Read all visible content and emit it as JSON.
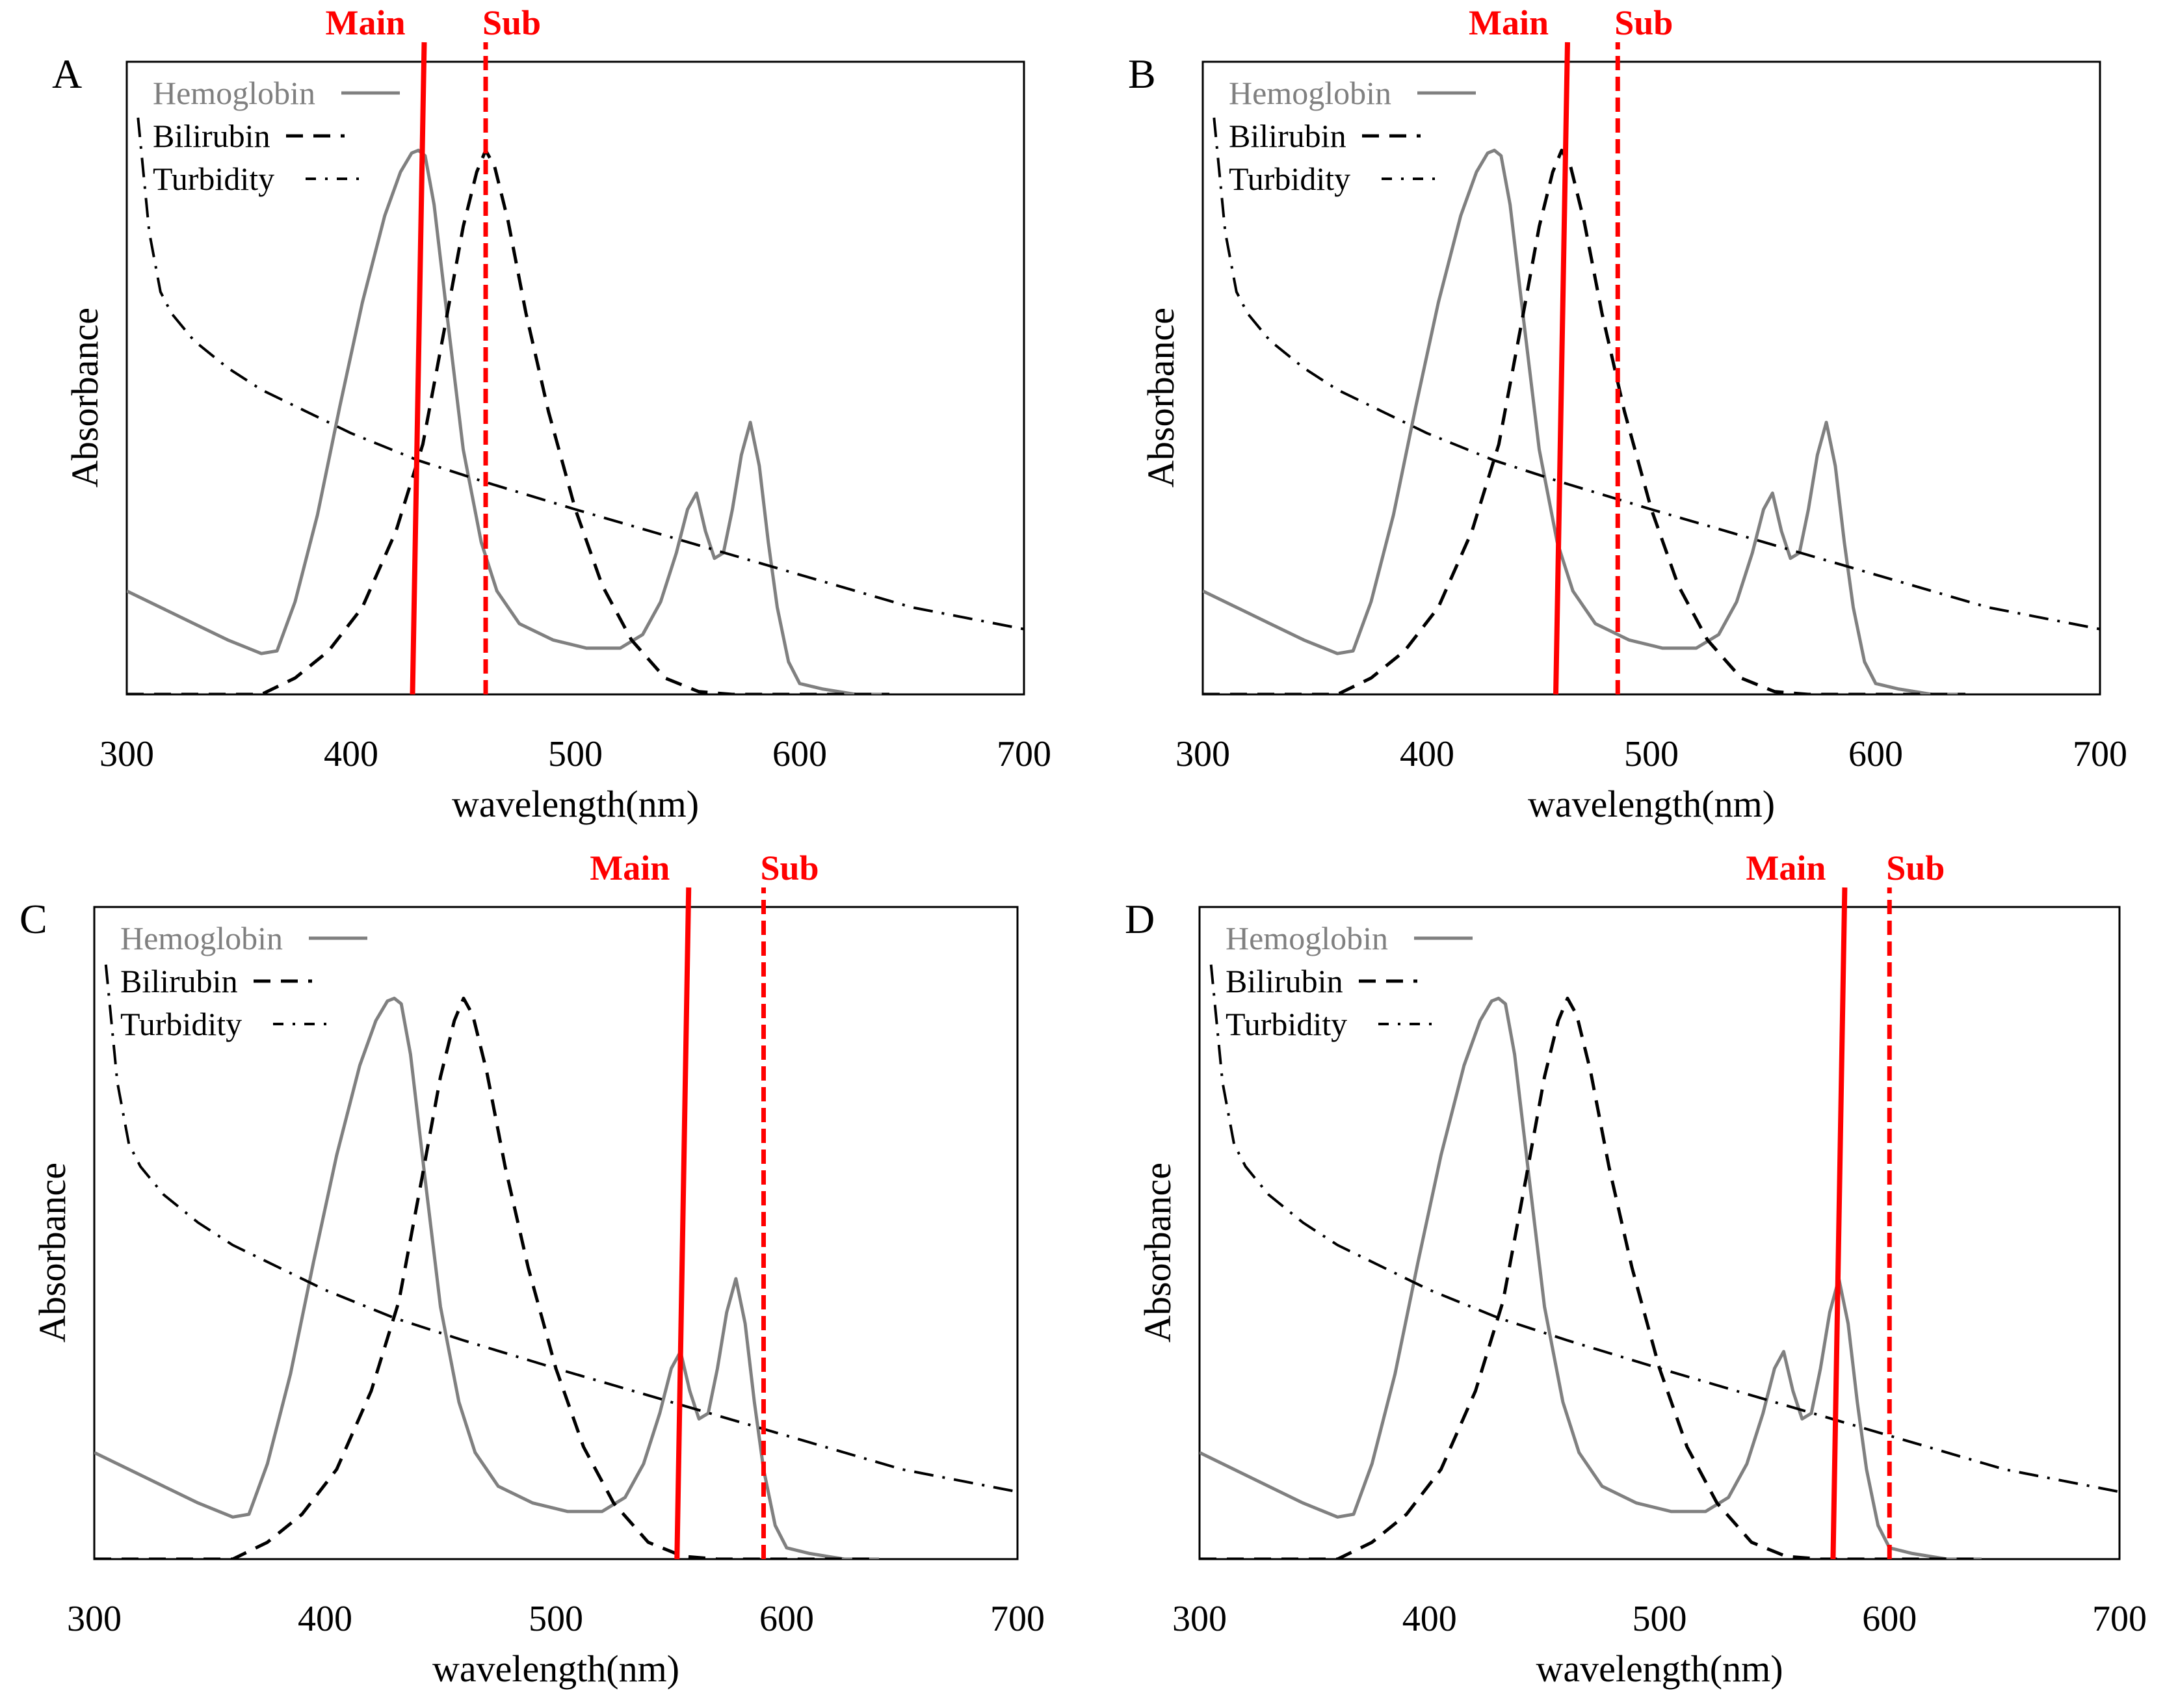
{
  "figure": {
    "colors": {
      "marker": "#ff0000",
      "hemoglobin": "#808080",
      "bilirubin": "#000000",
      "turbidity": "#000000",
      "frame": "#000000"
    }
  },
  "chart_data": [
    {
      "panel": "A",
      "type": "line",
      "xlabel": "wavelength(nm)",
      "ylabel": "Absorbance",
      "xlim": [
        300,
        700
      ],
      "ylim": [
        0,
        1
      ],
      "xticks": [
        "300",
        "400",
        "500",
        "600",
        "700"
      ],
      "legend": {
        "placement": "top-left",
        "entries": [
          "Hemoglobin",
          "Bilirubin",
          "Turbidity"
        ]
      },
      "markers": [
        {
          "label": "Main",
          "x": 430,
          "style": "solid"
        },
        {
          "label": "Sub",
          "x": 460,
          "style": "dashed"
        }
      ],
      "series": [
        {
          "name": "Hemoglobin",
          "style": "solid",
          "x": [
            300,
            315,
            330,
            345,
            360,
            367,
            375,
            385,
            395,
            405,
            415,
            422,
            427,
            430,
            433,
            437,
            443,
            450,
            458,
            465,
            475,
            490,
            505,
            520,
            530,
            538,
            545,
            550,
            554,
            558,
            562,
            566,
            570,
            574,
            578,
            582,
            586,
            590,
            595,
            600,
            610,
            625,
            640
          ],
          "y": [
            0.19,
            0.16,
            0.13,
            0.1,
            0.075,
            0.08,
            0.17,
            0.33,
            0.53,
            0.72,
            0.88,
            0.96,
            0.995,
            1.0,
            0.99,
            0.9,
            0.69,
            0.45,
            0.28,
            0.19,
            0.13,
            0.1,
            0.085,
            0.085,
            0.11,
            0.17,
            0.26,
            0.34,
            0.37,
            0.3,
            0.25,
            0.26,
            0.34,
            0.44,
            0.5,
            0.42,
            0.28,
            0.16,
            0.06,
            0.02,
            0.01,
            0.0,
            0.0
          ]
        },
        {
          "name": "Bilirubin",
          "style": "dashed",
          "x": [
            300,
            340,
            360,
            375,
            390,
            405,
            420,
            432,
            442,
            450,
            456,
            460,
            464,
            470,
            478,
            488,
            500,
            512,
            525,
            540,
            555,
            570,
            600,
            640
          ],
          "y": [
            0.0,
            0.0,
            0.0,
            0.03,
            0.08,
            0.16,
            0.3,
            0.46,
            0.68,
            0.86,
            0.96,
            1.0,
            0.97,
            0.87,
            0.7,
            0.52,
            0.34,
            0.2,
            0.1,
            0.03,
            0.005,
            0.0,
            0.0,
            0.0
          ]
        },
        {
          "name": "Turbidity",
          "style": "dashdot",
          "x": [
            305,
            310,
            315,
            320,
            330,
            345,
            360,
            380,
            400,
            430,
            460,
            500,
            550,
            600,
            650,
            700
          ],
          "y": [
            1.06,
            0.85,
            0.74,
            0.7,
            0.65,
            0.6,
            0.56,
            0.52,
            0.48,
            0.43,
            0.39,
            0.34,
            0.28,
            0.22,
            0.16,
            0.12
          ]
        }
      ]
    },
    {
      "panel": "B",
      "type": "line",
      "xlabel": "wavelength(nm)",
      "ylabel": "Absorbance",
      "xlim": [
        300,
        700
      ],
      "ylim": [
        0,
        1
      ],
      "xticks": [
        "300",
        "400",
        "500",
        "600",
        "700"
      ],
      "legend": {
        "placement": "top-left",
        "entries": [
          "Hemoglobin",
          "Bilirubin",
          "Turbidity"
        ]
      },
      "markers": [
        {
          "label": "Main",
          "x": 460,
          "style": "solid"
        },
        {
          "label": "Sub",
          "x": 485,
          "style": "dashed"
        }
      ],
      "series": [
        {
          "name": "Hemoglobin",
          "style": "solid",
          "x": [
            300,
            315,
            330,
            345,
            360,
            367,
            375,
            385,
            395,
            405,
            415,
            422,
            427,
            430,
            433,
            437,
            443,
            450,
            458,
            465,
            475,
            490,
            505,
            520,
            530,
            538,
            545,
            550,
            554,
            558,
            562,
            566,
            570,
            574,
            578,
            582,
            586,
            590,
            595,
            600,
            610,
            625,
            640
          ],
          "y": [
            0.19,
            0.16,
            0.13,
            0.1,
            0.075,
            0.08,
            0.17,
            0.33,
            0.53,
            0.72,
            0.88,
            0.96,
            0.995,
            1.0,
            0.99,
            0.9,
            0.69,
            0.45,
            0.28,
            0.19,
            0.13,
            0.1,
            0.085,
            0.085,
            0.11,
            0.17,
            0.26,
            0.34,
            0.37,
            0.3,
            0.25,
            0.26,
            0.34,
            0.44,
            0.5,
            0.42,
            0.28,
            0.16,
            0.06,
            0.02,
            0.01,
            0.0,
            0.0
          ]
        },
        {
          "name": "Bilirubin",
          "style": "dashed",
          "x": [
            300,
            340,
            360,
            375,
            390,
            405,
            420,
            432,
            442,
            450,
            456,
            460,
            464,
            470,
            478,
            488,
            500,
            512,
            525,
            540,
            555,
            570,
            600,
            640
          ],
          "y": [
            0.0,
            0.0,
            0.0,
            0.03,
            0.08,
            0.16,
            0.3,
            0.46,
            0.68,
            0.86,
            0.96,
            1.0,
            0.97,
            0.87,
            0.7,
            0.52,
            0.34,
            0.2,
            0.1,
            0.03,
            0.005,
            0.0,
            0.0,
            0.0
          ]
        },
        {
          "name": "Turbidity",
          "style": "dashdot",
          "x": [
            305,
            310,
            315,
            320,
            330,
            345,
            360,
            380,
            400,
            430,
            460,
            500,
            550,
            600,
            650,
            700
          ],
          "y": [
            1.06,
            0.85,
            0.74,
            0.7,
            0.65,
            0.6,
            0.56,
            0.52,
            0.48,
            0.43,
            0.39,
            0.34,
            0.28,
            0.22,
            0.16,
            0.12
          ]
        }
      ]
    },
    {
      "panel": "C",
      "type": "line",
      "xlabel": "wavelength(nm)",
      "ylabel": "Absorbance",
      "xlim": [
        300,
        700
      ],
      "ylim": [
        0,
        1
      ],
      "xticks": [
        "300",
        "400",
        "500",
        "600",
        "700"
      ],
      "legend": {
        "placement": "top-left",
        "entries": [
          "Hemoglobin",
          "Bilirubin",
          "Turbidity"
        ]
      },
      "markers": [
        {
          "label": "Main",
          "x": 555,
          "style": "solid"
        },
        {
          "label": "Sub",
          "x": 590,
          "style": "dashed"
        }
      ],
      "series": [
        {
          "name": "Hemoglobin",
          "style": "solid",
          "x": [
            300,
            315,
            330,
            345,
            360,
            367,
            375,
            385,
            395,
            405,
            415,
            422,
            427,
            430,
            433,
            437,
            443,
            450,
            458,
            465,
            475,
            490,
            505,
            520,
            530,
            538,
            545,
            550,
            554,
            558,
            562,
            566,
            570,
            574,
            578,
            582,
            586,
            590,
            595,
            600,
            610,
            625,
            640
          ],
          "y": [
            0.19,
            0.16,
            0.13,
            0.1,
            0.075,
            0.08,
            0.17,
            0.33,
            0.53,
            0.72,
            0.88,
            0.96,
            0.995,
            1.0,
            0.99,
            0.9,
            0.69,
            0.45,
            0.28,
            0.19,
            0.13,
            0.1,
            0.085,
            0.085,
            0.11,
            0.17,
            0.26,
            0.34,
            0.37,
            0.3,
            0.25,
            0.26,
            0.34,
            0.44,
            0.5,
            0.42,
            0.28,
            0.16,
            0.06,
            0.02,
            0.01,
            0.0,
            0.0
          ]
        },
        {
          "name": "Bilirubin",
          "style": "dashed",
          "x": [
            300,
            340,
            360,
            375,
            390,
            405,
            420,
            432,
            442,
            450,
            456,
            460,
            464,
            470,
            478,
            488,
            500,
            512,
            525,
            540,
            555,
            570,
            600,
            640
          ],
          "y": [
            0.0,
            0.0,
            0.0,
            0.03,
            0.08,
            0.16,
            0.3,
            0.46,
            0.68,
            0.86,
            0.96,
            1.0,
            0.97,
            0.87,
            0.7,
            0.52,
            0.34,
            0.2,
            0.1,
            0.03,
            0.005,
            0.0,
            0.0,
            0.0
          ]
        },
        {
          "name": "Turbidity",
          "style": "dashdot",
          "x": [
            305,
            310,
            315,
            320,
            330,
            345,
            360,
            380,
            400,
            430,
            460,
            500,
            550,
            600,
            650,
            700
          ],
          "y": [
            1.06,
            0.85,
            0.74,
            0.7,
            0.65,
            0.6,
            0.56,
            0.52,
            0.48,
            0.43,
            0.39,
            0.34,
            0.28,
            0.22,
            0.16,
            0.12
          ]
        }
      ]
    },
    {
      "panel": "D",
      "type": "line",
      "xlabel": "wavelength(nm)",
      "ylabel": "Absorbance",
      "xlim": [
        300,
        700
      ],
      "ylim": [
        0,
        1
      ],
      "xticks": [
        "300",
        "400",
        "500",
        "600",
        "700"
      ],
      "legend": {
        "placement": "top-left",
        "entries": [
          "Hemoglobin",
          "Bilirubin",
          "Turbidity"
        ]
      },
      "markers": [
        {
          "label": "Main",
          "x": 578,
          "style": "solid"
        },
        {
          "label": "Sub",
          "x": 600,
          "style": "dashed"
        }
      ],
      "series": [
        {
          "name": "Hemoglobin",
          "style": "solid",
          "x": [
            300,
            315,
            330,
            345,
            360,
            367,
            375,
            385,
            395,
            405,
            415,
            422,
            427,
            430,
            433,
            437,
            443,
            450,
            458,
            465,
            475,
            490,
            505,
            520,
            530,
            538,
            545,
            550,
            554,
            558,
            562,
            566,
            570,
            574,
            578,
            582,
            586,
            590,
            595,
            600,
            610,
            625,
            640
          ],
          "y": [
            0.19,
            0.16,
            0.13,
            0.1,
            0.075,
            0.08,
            0.17,
            0.33,
            0.53,
            0.72,
            0.88,
            0.96,
            0.995,
            1.0,
            0.99,
            0.9,
            0.69,
            0.45,
            0.28,
            0.19,
            0.13,
            0.1,
            0.085,
            0.085,
            0.11,
            0.17,
            0.26,
            0.34,
            0.37,
            0.3,
            0.25,
            0.26,
            0.34,
            0.44,
            0.5,
            0.42,
            0.28,
            0.16,
            0.06,
            0.02,
            0.01,
            0.0,
            0.0
          ]
        },
        {
          "name": "Bilirubin",
          "style": "dashed",
          "x": [
            300,
            340,
            360,
            375,
            390,
            405,
            420,
            432,
            442,
            450,
            456,
            460,
            464,
            470,
            478,
            488,
            500,
            512,
            525,
            540,
            555,
            570,
            600,
            640
          ],
          "y": [
            0.0,
            0.0,
            0.0,
            0.03,
            0.08,
            0.16,
            0.3,
            0.46,
            0.68,
            0.86,
            0.96,
            1.0,
            0.97,
            0.87,
            0.7,
            0.52,
            0.34,
            0.2,
            0.1,
            0.03,
            0.005,
            0.0,
            0.0,
            0.0
          ]
        },
        {
          "name": "Turbidity",
          "style": "dashdot",
          "x": [
            305,
            310,
            315,
            320,
            330,
            345,
            360,
            380,
            400,
            430,
            460,
            500,
            550,
            600,
            650,
            700
          ],
          "y": [
            1.06,
            0.85,
            0.74,
            0.7,
            0.65,
            0.6,
            0.56,
            0.52,
            0.48,
            0.43,
            0.39,
            0.34,
            0.28,
            0.22,
            0.16,
            0.12
          ]
        }
      ]
    }
  ]
}
